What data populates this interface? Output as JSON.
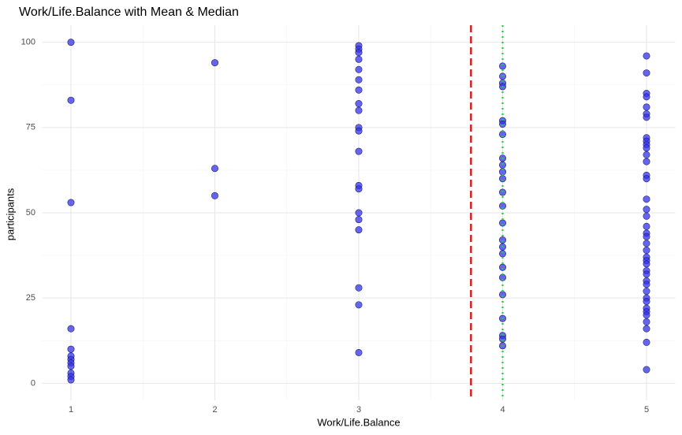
{
  "chart_data": {
    "type": "scatter",
    "title": "Work/Life.Balance with Mean & Median",
    "x_label": "Work/Life.Balance",
    "y_label": "participants",
    "xlim": [
      0.8,
      5.2
    ],
    "ylim": [
      -5,
      105
    ],
    "xticks": [
      1,
      2,
      3,
      4,
      5
    ],
    "yticks": [
      0,
      25,
      50,
      75,
      100
    ],
    "grid": true,
    "point_color": "#3333ee",
    "x": [
      1,
      1,
      1,
      1,
      1,
      1,
      1,
      1,
      1,
      1,
      1,
      1,
      2,
      2,
      2,
      3,
      3,
      3,
      3,
      3,
      3,
      3,
      3,
      3,
      3,
      3,
      3,
      3,
      3,
      3,
      3,
      3,
      3,
      3,
      3,
      4,
      4,
      4,
      4,
      4,
      4,
      4,
      4,
      4,
      4,
      4,
      4,
      4,
      4,
      4,
      4,
      4,
      4,
      4,
      4,
      4,
      4,
      4,
      4,
      5,
      5,
      5,
      5,
      5,
      5,
      5,
      5,
      5,
      5,
      5,
      5,
      5,
      5,
      5,
      5,
      5,
      5,
      5,
      5,
      5,
      5,
      5,
      5,
      5,
      5,
      5,
      5,
      5,
      5,
      5,
      5,
      5,
      5,
      5,
      5,
      5,
      5,
      5,
      5
    ],
    "values": [
      100,
      83,
      53,
      16,
      10,
      8,
      7,
      6,
      5,
      3,
      2,
      1,
      94,
      63,
      55,
      99,
      98,
      97,
      95,
      92,
      89,
      86,
      82,
      80,
      75,
      74,
      68,
      58,
      57,
      50,
      48,
      45,
      28,
      23,
      9,
      93,
      90,
      88,
      87,
      77,
      76,
      73,
      66,
      64,
      62,
      60,
      56,
      52,
      47,
      42,
      40,
      38,
      34,
      31,
      26,
      19,
      14,
      13,
      11,
      96,
      91,
      85,
      84,
      81,
      79,
      78,
      72,
      71,
      70,
      69,
      67,
      65,
      61,
      60,
      54,
      51,
      49,
      46,
      44,
      43,
      41,
      39,
      37,
      36,
      35,
      33,
      32,
      30,
      29,
      27,
      25,
      24,
      22,
      21,
      20,
      18,
      16,
      12,
      4
    ],
    "mean": 3.78,
    "mean_color": "#dd0000",
    "median": 4,
    "median_color": "#22cc44"
  }
}
